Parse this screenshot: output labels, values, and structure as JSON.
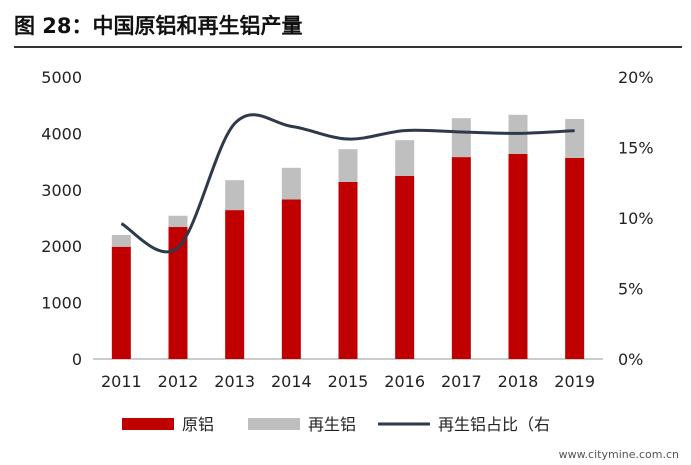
{
  "title": "图 28：中国原铝和再生铝产量",
  "watermark": "www.citymine.com.cn",
  "chart_data": {
    "type": "bar",
    "categories": [
      "2011",
      "2012",
      "2013",
      "2014",
      "2015",
      "2016",
      "2017",
      "2018",
      "2019"
    ],
    "series": [
      {
        "name": "原铝",
        "kind": "stacked-bar",
        "color": "#c00000",
        "values": [
          1990,
          2340,
          2640,
          2830,
          3140,
          3245,
          3580,
          3635,
          3565
        ]
      },
      {
        "name": "再生铝",
        "kind": "stacked-bar",
        "color": "#bfbfbf",
        "values": [
          210,
          200,
          530,
          560,
          580,
          635,
          690,
          695,
          690
        ]
      },
      {
        "name": "再生铝占比（右",
        "kind": "line",
        "axis": "right",
        "color": "#2e3a4a",
        "values": [
          9.6,
          7.9,
          16.7,
          16.5,
          15.6,
          16.2,
          16.1,
          16.0,
          16.2
        ]
      }
    ],
    "ylim": [
      0,
      5000
    ],
    "yticks": [
      "0",
      "1000",
      "2000",
      "3000",
      "4000",
      "5000"
    ],
    "y2lim": [
      0,
      20
    ],
    "y2ticks": [
      "0%",
      "5%",
      "10%",
      "15%",
      "20%"
    ],
    "legend": "bottom"
  }
}
